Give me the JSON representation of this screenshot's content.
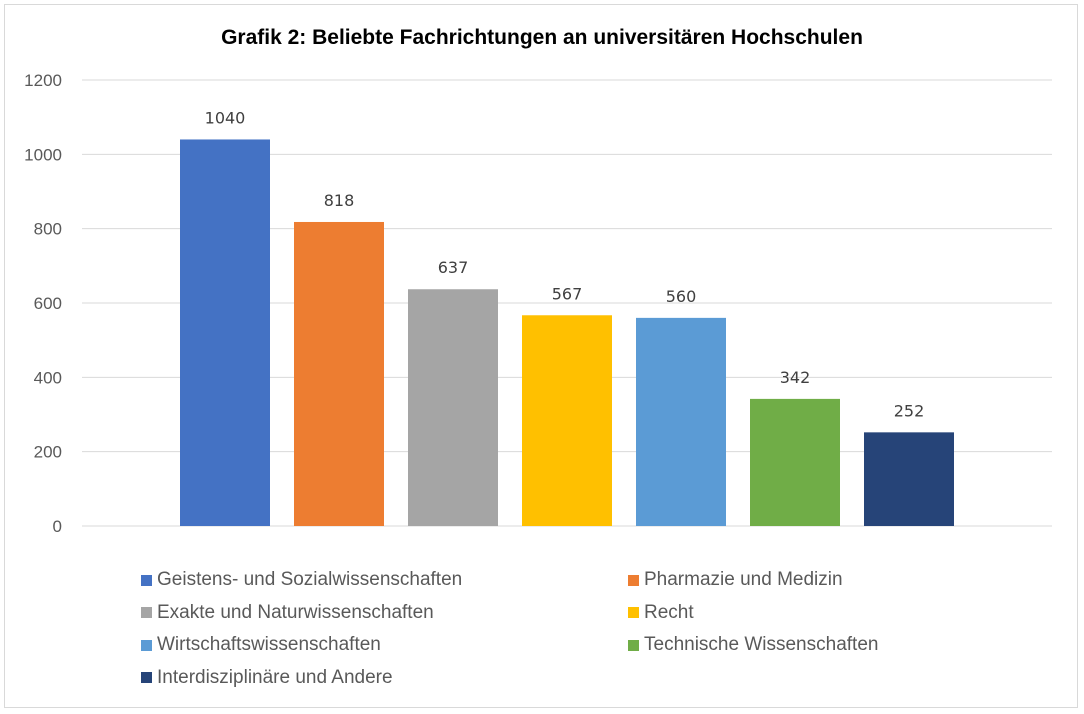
{
  "chart_data": {
    "type": "bar",
    "title": "Grafik 2: Beliebte Fachrichtungen an universitären Hochschulen",
    "xlabel": "",
    "ylabel": "",
    "ylim": [
      0,
      1200
    ],
    "yticks": [
      0,
      200,
      400,
      600,
      800,
      1000,
      1200
    ],
    "grid": true,
    "legend_position": "bottom",
    "series": [
      {
        "name": "Geistens- und Sozialwissenschaften",
        "value": 1040,
        "label": "1040",
        "color": "#4472C4"
      },
      {
        "name": "Pharmazie und Medizin",
        "value": 818,
        "label": "818",
        "color": "#ED7D31"
      },
      {
        "name": "Exakte und Naturwissenschaften",
        "value": 637,
        "label": "637",
        "color": "#A5A5A5"
      },
      {
        "name": "Recht",
        "value": 567,
        "label": "567",
        "color": "#FFC000"
      },
      {
        "name": "Wirtschaftswissenschaften",
        "value": 560,
        "label": "560",
        "color": "#5B9BD5"
      },
      {
        "name": "Technische Wissenschaften",
        "value": 342,
        "label": "342",
        "color": "#70AD47"
      },
      {
        "name": "Interdisziplinäre und Andere",
        "value": 252,
        "label": "252",
        "color": "#264478"
      }
    ]
  }
}
